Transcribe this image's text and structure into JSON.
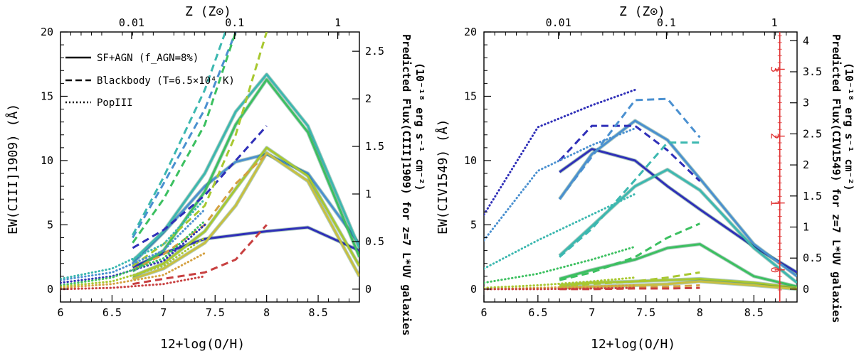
{
  "chart_data": [
    {
      "type": "line",
      "panel": "left",
      "xlabel": "12+log(O/H)",
      "ylabel": "EW(CIII]1909) (Å)",
      "top_xlabel": "Z (Z⊙)",
      "right_ylabel": "Predicted Flux(CIII]1909) for z=7 L*UV galaxies",
      "right_ylabel_units": "(10⁻¹⁸ erg s⁻¹ cm⁻²)",
      "xlim": [
        6,
        8.9
      ],
      "ylim": [
        -1,
        20
      ],
      "x_ticks": [
        "6",
        "6.5",
        "7",
        "7.5",
        "8",
        "8.5"
      ],
      "x_tick_values": [
        6,
        6.5,
        7,
        7.5,
        8,
        8.5
      ],
      "y_ticks": [
        "0",
        "5",
        "10",
        "15",
        "20"
      ],
      "y_tick_values": [
        0,
        5,
        10,
        15,
        20
      ],
      "top_ticks": [
        "0.01",
        "0.1",
        "1"
      ],
      "top_tick_values": [
        6.69,
        7.69,
        8.69
      ],
      "right_ticks": [
        "0",
        "0.5",
        "1",
        "1.5",
        "2",
        "2.5"
      ],
      "right_tick_values": [
        0,
        0.5,
        1,
        1.5,
        2,
        2.5
      ],
      "right_scale": 7.4,
      "legend": {
        "position": "top-left",
        "entries": [
          {
            "label": "SF+AGN (f_AGN=8%)",
            "style": "solid"
          },
          {
            "label": "Blackbody (T=6.5×10⁴ K)",
            "style": "dashed"
          },
          {
            "label": "PopIII",
            "style": "dotted"
          }
        ]
      },
      "series": [
        {
          "style": "solid",
          "color": "#2f2fb8",
          "width": 3,
          "x": [
            6.7,
            7.0,
            7.4,
            7.7,
            8.0,
            8.4,
            8.9
          ],
          "y": [
            1.7,
            2.8,
            3.9,
            4.2,
            4.5,
            4.8,
            3.0
          ]
        },
        {
          "style": "solid",
          "color": "#4a90d0",
          "width": 3,
          "x": [
            6.7,
            7.0,
            7.4,
            7.7,
            8.0,
            8.4,
            8.9
          ],
          "y": [
            2.0,
            4.4,
            8.0,
            9.9,
            10.5,
            9.0,
            3.5
          ]
        },
        {
          "style": "solid",
          "color": "#3cb8b0",
          "width": 3,
          "x": [
            6.7,
            7.0,
            7.4,
            7.7,
            8.0,
            8.4,
            8.9
          ],
          "y": [
            2.2,
            4.5,
            9.0,
            13.8,
            16.7,
            12.7,
            3.2
          ]
        },
        {
          "style": "solid",
          "color": "#3cc060",
          "width": 3,
          "x": [
            6.7,
            7.0,
            7.4,
            7.7,
            8.0,
            8.4,
            8.9
          ],
          "y": [
            1.4,
            3.0,
            7.6,
            12.8,
            16.3,
            12.2,
            2.5
          ]
        },
        {
          "style": "solid",
          "color": "#a8c830",
          "width": 3,
          "x": [
            6.7,
            7.0,
            7.4,
            7.7,
            8.0,
            8.4,
            8.9
          ],
          "y": [
            1.0,
            2.0,
            4.5,
            7.8,
            11.0,
            8.8,
            1.8
          ]
        },
        {
          "style": "solid",
          "color": "#c8c040",
          "width": 3,
          "x": [
            6.7,
            7.0,
            7.4,
            7.7,
            8.0,
            8.4,
            8.9
          ],
          "y": [
            0.8,
            1.6,
            3.6,
            6.5,
            10.6,
            8.4,
            1.0
          ]
        },
        {
          "style": "dashed",
          "color": "#2f2fb8",
          "width": 3,
          "x": [
            6.7,
            7.0,
            7.4,
            7.7,
            8.0
          ],
          "y": [
            3.2,
            4.6,
            7.3,
            10.0,
            12.7
          ]
        },
        {
          "style": "dashed",
          "color": "#4a90d0",
          "width": 3,
          "x": [
            6.7,
            7.0,
            7.4,
            7.7
          ],
          "y": [
            4.0,
            8.2,
            14.0,
            20.0
          ]
        },
        {
          "style": "dashed",
          "color": "#3cb8b0",
          "width": 3,
          "x": [
            6.7,
            7.0,
            7.4,
            7.6
          ],
          "y": [
            4.2,
            8.7,
            15.5,
            20.0
          ]
        },
        {
          "style": "dashed",
          "color": "#3cc060",
          "width": 3,
          "x": [
            6.7,
            7.0,
            7.4,
            7.7
          ],
          "y": [
            3.6,
            7.0,
            12.8,
            20.0
          ]
        },
        {
          "style": "dashed",
          "color": "#a8c830",
          "width": 3,
          "x": [
            6.7,
            7.0,
            7.4,
            7.7,
            8.0
          ],
          "y": [
            1.8,
            3.5,
            6.5,
            12.0,
            20.0
          ]
        },
        {
          "style": "dashed",
          "color": "#d4a040",
          "width": 3,
          "x": [
            6.7,
            7.0,
            7.4,
            7.7,
            8.0
          ],
          "y": [
            1.5,
            2.7,
            5.0,
            8.2,
            10.5
          ]
        },
        {
          "style": "dashed",
          "color": "#c84040",
          "width": 3,
          "x": [
            6.7,
            7.0,
            7.4,
            7.7,
            8.0
          ],
          "y": [
            0.4,
            0.8,
            1.3,
            2.3,
            5.0
          ]
        },
        {
          "style": "dotted",
          "color": "#2f2fb8",
          "width": 3,
          "x": [
            6.0,
            6.5,
            7.0,
            7.4
          ],
          "y": [
            0.5,
            1.0,
            2.2,
            5.0
          ]
        },
        {
          "style": "dotted",
          "color": "#4a90d0",
          "width": 3,
          "x": [
            6.0,
            6.5,
            7.0,
            7.4
          ],
          "y": [
            0.7,
            1.3,
            3.0,
            6.2
          ]
        },
        {
          "style": "dotted",
          "color": "#3cb8b0",
          "width": 3,
          "x": [
            6.0,
            6.5,
            7.0,
            7.4
          ],
          "y": [
            0.8,
            1.6,
            3.5,
            7.0
          ]
        },
        {
          "style": "dotted",
          "color": "#3cc060",
          "width": 3,
          "x": [
            6.0,
            6.5,
            7.0,
            7.4
          ],
          "y": [
            0.3,
            0.9,
            2.4,
            5.3
          ]
        },
        {
          "style": "dotted",
          "color": "#a8c830",
          "width": 3,
          "x": [
            6.0,
            6.5,
            7.0,
            7.4
          ],
          "y": [
            0.2,
            0.6,
            1.8,
            4.0
          ]
        },
        {
          "style": "dotted",
          "color": "#d4a040",
          "width": 3,
          "x": [
            6.0,
            6.5,
            7.0,
            7.4
          ],
          "y": [
            0.1,
            0.4,
            1.1,
            2.8
          ]
        },
        {
          "style": "dotted",
          "color": "#c84040",
          "width": 3,
          "x": [
            6.0,
            6.5,
            7.0,
            7.4
          ],
          "y": [
            0.0,
            0.1,
            0.4,
            1.0
          ]
        }
      ]
    },
    {
      "type": "line",
      "panel": "right",
      "xlabel": "12+log(O/H)",
      "ylabel": "EW(CIV1549) (Å)",
      "top_xlabel": "Z (Z⊙)",
      "right_ylabel": "Predicted Flux(CIV1549) for z=7 L*UV galaxies",
      "right_ylabel_units": "(10⁻¹⁸ erg s⁻¹ cm⁻²)",
      "xlim": [
        6,
        8.9
      ],
      "ylim": [
        -1,
        20
      ],
      "x_ticks": [
        "6",
        "6.5",
        "7",
        "7.5",
        "8",
        "8.5"
      ],
      "x_tick_values": [
        6,
        6.5,
        7,
        7.5,
        8,
        8.5
      ],
      "y_ticks": [
        "0",
        "5",
        "10",
        "15",
        "20"
      ],
      "y_tick_values": [
        0,
        5,
        10,
        15,
        20
      ],
      "top_ticks": [
        "0.01",
        "0.1",
        "1"
      ],
      "top_tick_values": [
        6.69,
        7.69,
        8.69
      ],
      "right_ticks": [
        "0",
        "0.5",
        "1",
        "1.5",
        "2",
        "2.5",
        "3",
        "3.5",
        "4"
      ],
      "right_tick_values": [
        0,
        0.5,
        1,
        1.5,
        2,
        2.5,
        3,
        3.5,
        4
      ],
      "right_scale": 4.83,
      "red_axis": {
        "color": "#e03030",
        "x": 8.74,
        "ticks": [
          "0",
          "1",
          "2",
          "3"
        ],
        "tick_values": [
          0,
          1,
          2,
          3
        ],
        "scale": 5.2,
        "offset": 1.5
      },
      "series": [
        {
          "style": "solid",
          "color": "#2f2fb8",
          "width": 3,
          "x": [
            6.7,
            7.0,
            7.4,
            7.7,
            8.0,
            8.5,
            8.9
          ],
          "y": [
            9.1,
            10.9,
            10.0,
            8.0,
            6.2,
            3.3,
            1.3
          ]
        },
        {
          "style": "solid",
          "color": "#4a90d0",
          "width": 3,
          "x": [
            6.7,
            7.0,
            7.4,
            7.7,
            8.0,
            8.5,
            8.9
          ],
          "y": [
            7.0,
            10.5,
            13.1,
            11.6,
            8.6,
            3.5,
            1.0
          ]
        },
        {
          "style": "solid",
          "color": "#3cb8b0",
          "width": 3,
          "x": [
            6.7,
            7.0,
            7.4,
            7.7,
            8.0,
            8.5,
            8.9
          ],
          "y": [
            2.6,
            4.9,
            8.0,
            9.3,
            7.7,
            3.2,
            0.5
          ]
        },
        {
          "style": "solid",
          "color": "#3cc060",
          "width": 3,
          "x": [
            6.7,
            7.0,
            7.4,
            7.7,
            8.0,
            8.5,
            8.9
          ],
          "y": [
            0.8,
            1.5,
            2.3,
            3.2,
            3.5,
            1.0,
            0.2
          ]
        },
        {
          "style": "solid",
          "color": "#a8c830",
          "width": 3,
          "x": [
            6.7,
            7.0,
            7.4,
            7.7,
            8.0,
            8.5,
            8.9
          ],
          "y": [
            0.3,
            0.5,
            0.6,
            0.7,
            0.8,
            0.5,
            0.1
          ]
        },
        {
          "style": "solid",
          "color": "#c8c040",
          "width": 3,
          "x": [
            6.7,
            7.0,
            7.4,
            7.7,
            8.0,
            8.5,
            8.9
          ],
          "y": [
            0.1,
            0.2,
            0.3,
            0.4,
            0.6,
            0.3,
            0.0
          ]
        },
        {
          "style": "dashed",
          "color": "#2f2fb8",
          "width": 3,
          "x": [
            6.7,
            7.0,
            7.4,
            7.7,
            8.0
          ],
          "y": [
            10.0,
            12.7,
            12.7,
            10.8,
            8.4
          ]
        },
        {
          "style": "dashed",
          "color": "#4a90d0",
          "width": 3,
          "x": [
            6.7,
            7.0,
            7.4,
            7.7,
            8.0
          ],
          "y": [
            7.0,
            10.3,
            14.7,
            14.8,
            11.8
          ]
        },
        {
          "style": "dashed",
          "color": "#3cb8b0",
          "width": 3,
          "x": [
            6.7,
            7.0,
            7.4,
            7.7,
            8.0
          ],
          "y": [
            2.5,
            4.7,
            8.5,
            11.4,
            11.4
          ]
        },
        {
          "style": "dashed",
          "color": "#3cc060",
          "width": 3,
          "x": [
            6.7,
            7.0,
            7.4,
            7.7,
            8.0
          ],
          "y": [
            0.7,
            1.3,
            2.5,
            4.0,
            5.1
          ]
        },
        {
          "style": "dashed",
          "color": "#a8c830",
          "width": 3,
          "x": [
            6.7,
            7.0,
            7.4,
            7.7,
            8.0
          ],
          "y": [
            0.2,
            0.4,
            0.6,
            0.9,
            1.3
          ]
        },
        {
          "style": "dashed",
          "color": "#d4a040",
          "width": 3,
          "x": [
            6.7,
            7.0,
            7.4,
            7.7,
            8.0
          ],
          "y": [
            0.05,
            0.1,
            0.15,
            0.2,
            0.3
          ]
        },
        {
          "style": "dashed",
          "color": "#c84040",
          "width": 3,
          "x": [
            6.7,
            7.0,
            7.4,
            7.7,
            8.0
          ],
          "y": [
            0.0,
            0.0,
            0.05,
            0.05,
            0.1
          ]
        },
        {
          "style": "dotted",
          "color": "#2f2fb8",
          "width": 3,
          "x": [
            6.0,
            6.5,
            7.0,
            7.4
          ],
          "y": [
            5.8,
            12.6,
            14.3,
            15.5
          ]
        },
        {
          "style": "dotted",
          "color": "#4a90d0",
          "width": 3,
          "x": [
            6.0,
            6.5,
            7.0,
            7.4
          ],
          "y": [
            3.8,
            9.2,
            11.2,
            12.5
          ]
        },
        {
          "style": "dotted",
          "color": "#3cb8b0",
          "width": 3,
          "x": [
            6.0,
            6.5,
            7.0,
            7.4
          ],
          "y": [
            1.6,
            3.8,
            5.8,
            7.4
          ]
        },
        {
          "style": "dotted",
          "color": "#3cc060",
          "width": 3,
          "x": [
            6.0,
            6.5,
            7.0,
            7.4
          ],
          "y": [
            0.5,
            1.2,
            2.3,
            3.3
          ]
        },
        {
          "style": "dotted",
          "color": "#a8c830",
          "width": 3,
          "x": [
            6.0,
            6.5,
            7.0,
            7.4
          ],
          "y": [
            0.1,
            0.3,
            0.6,
            0.9
          ]
        },
        {
          "style": "dotted",
          "color": "#d4a040",
          "width": 3,
          "x": [
            6.0,
            6.5,
            7.0,
            7.4
          ],
          "y": [
            0.0,
            0.1,
            0.2,
            0.3
          ]
        },
        {
          "style": "dotted",
          "color": "#c84040",
          "width": 3,
          "x": [
            6.0,
            6.5,
            7.0,
            7.4
          ],
          "y": [
            0.0,
            0.0,
            0.05,
            0.1
          ]
        }
      ]
    }
  ]
}
